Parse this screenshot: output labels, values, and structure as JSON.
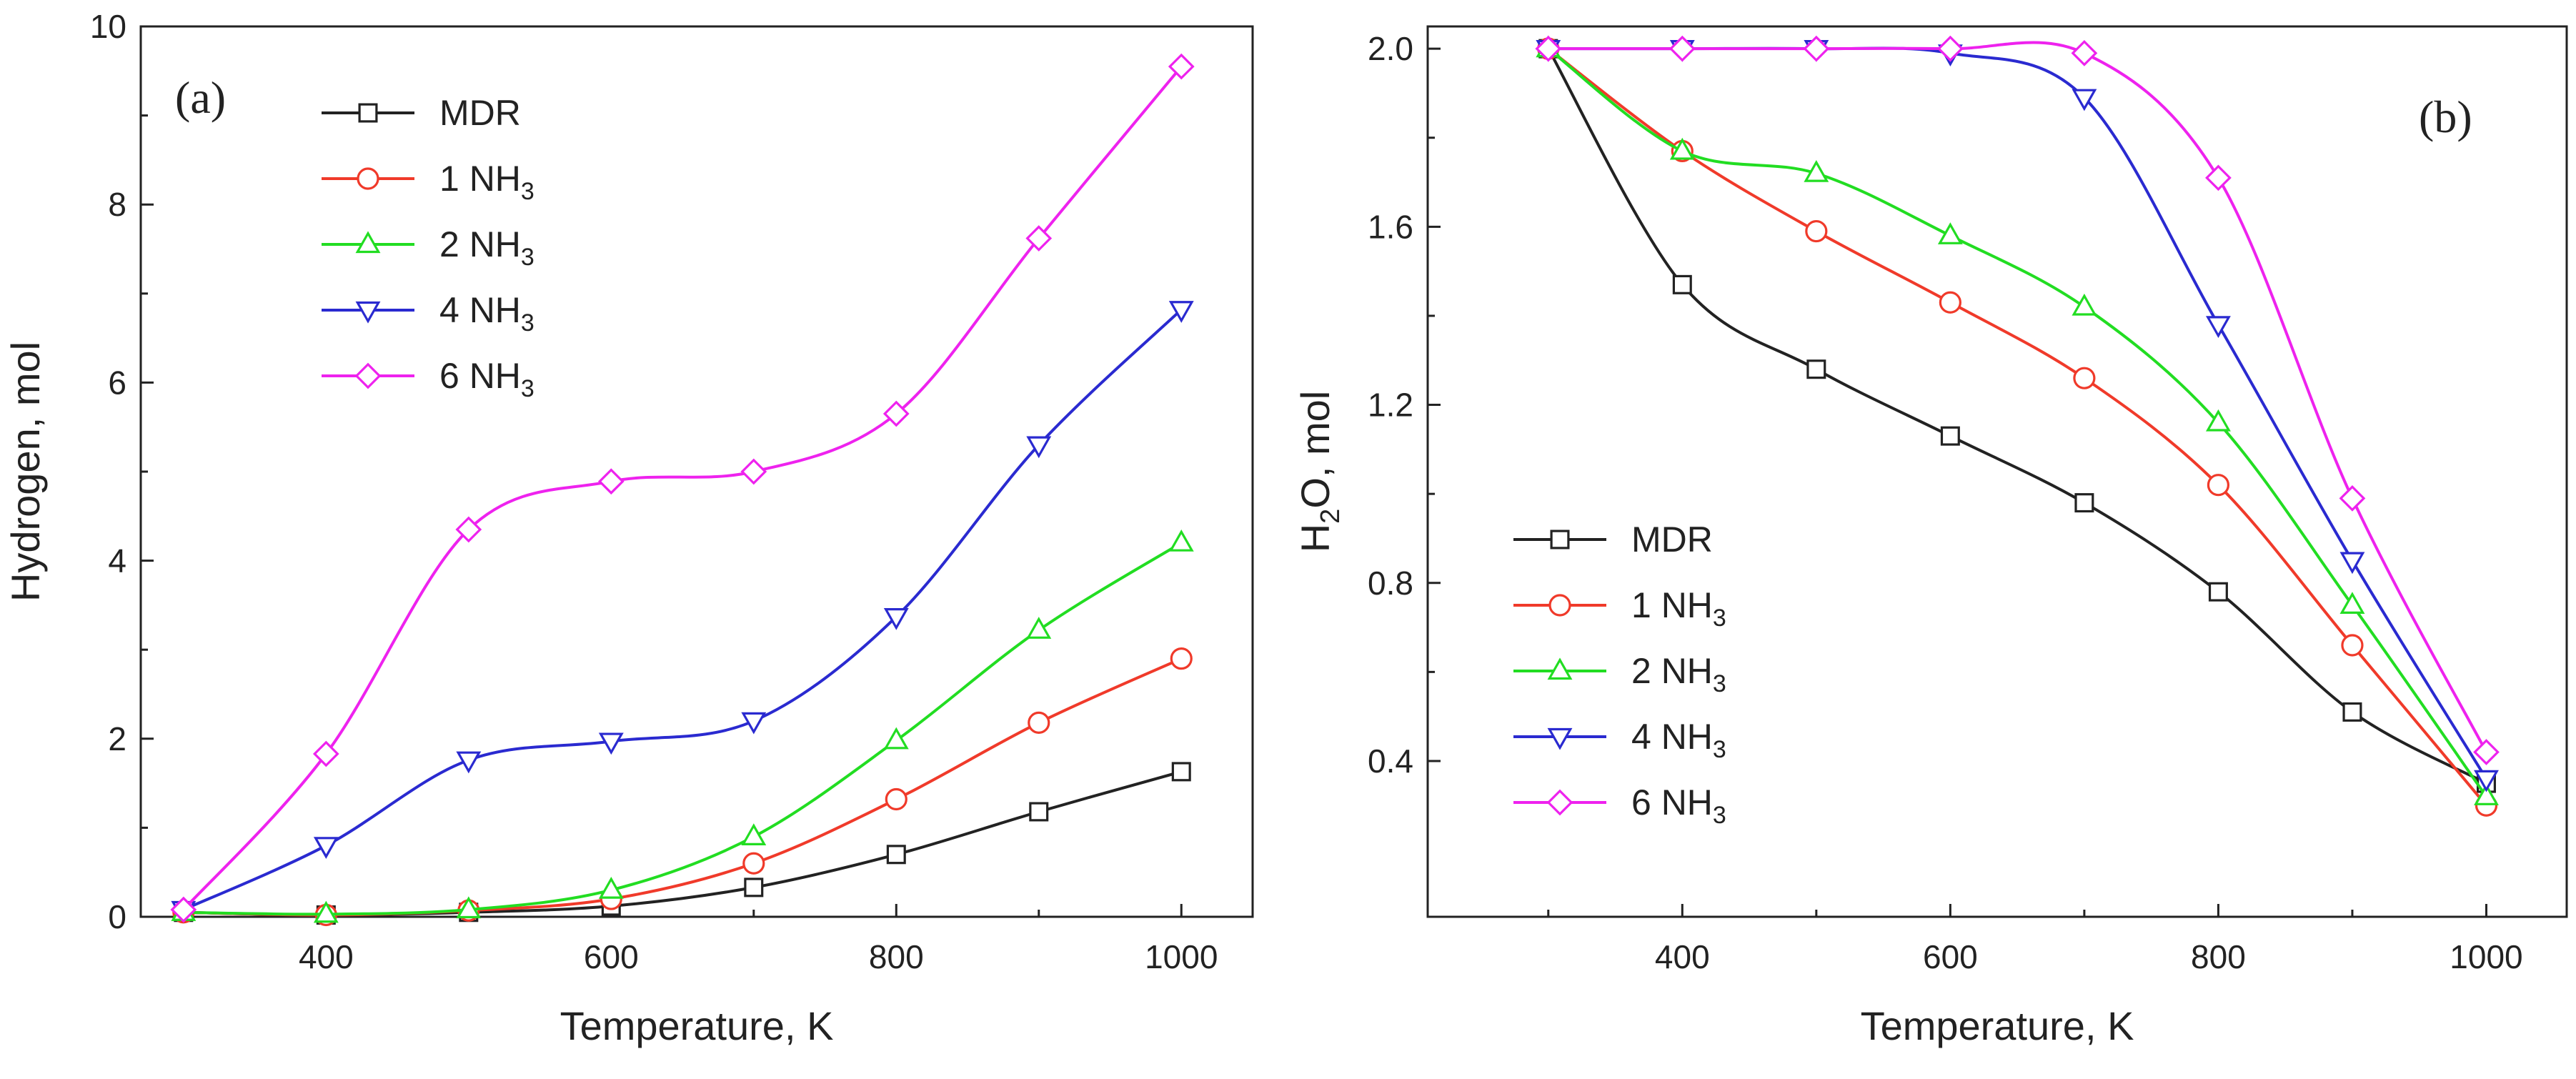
{
  "chart_data": [
    {
      "type": "line",
      "panel_label": "(a)",
      "title": "",
      "xlabel": "Temperature, K",
      "ylabel": "Hydrogen, mol",
      "xlim": [
        270,
        1050
      ],
      "ylim": [
        0,
        10
      ],
      "x_ticks": [
        "400",
        "600",
        "800",
        "1000"
      ],
      "y_ticks": [
        "0",
        "2",
        "4",
        "6",
        "8",
        "10"
      ],
      "legend_position": "top-left",
      "x": [
        300,
        400,
        500,
        600,
        700,
        800,
        900,
        1000
      ],
      "series": [
        {
          "name": "MDR",
          "base": "MDR",
          "sub": "",
          "color": "#222222",
          "marker": "square",
          "values": [
            0.05,
            0.02,
            0.05,
            0.12,
            0.33,
            0.7,
            1.18,
            1.63
          ]
        },
        {
          "name": "1 NH3",
          "base": "1 NH",
          "sub": "3",
          "color": "#f03a2a",
          "marker": "circle",
          "values": [
            0.05,
            0.02,
            0.07,
            0.2,
            0.6,
            1.32,
            2.18,
            2.9
          ]
        },
        {
          "name": "2 NH3",
          "base": "2 NH",
          "sub": "3",
          "color": "#22dd22",
          "marker": "triangle-up",
          "values": [
            0.05,
            0.03,
            0.08,
            0.3,
            0.9,
            1.98,
            3.22,
            4.2
          ]
        },
        {
          "name": "4 NH3",
          "base": "4 NH",
          "sub": "3",
          "color": "#2a2ad0",
          "marker": "triangle-down",
          "values": [
            0.08,
            0.8,
            1.76,
            1.97,
            2.2,
            3.37,
            5.3,
            6.82
          ]
        },
        {
          "name": "6 NH3",
          "base": "6 NH",
          "sub": "3",
          "color": "#ee22ee",
          "marker": "diamond",
          "values": [
            0.08,
            1.83,
            4.35,
            4.89,
            5.0,
            5.65,
            7.62,
            9.55
          ]
        }
      ]
    },
    {
      "type": "line",
      "panel_label": "(b)",
      "title": "",
      "xlabel": "Temperature, K",
      "ylabel": "H2O, mol",
      "ylabel_parts": [
        "H",
        "2",
        "O, mol"
      ],
      "xlim": [
        210,
        1060
      ],
      "ylim": [
        0.05,
        2.05
      ],
      "x_ticks": [
        "400",
        "600",
        "800",
        "1000"
      ],
      "y_ticks": [
        "0.4",
        "0.8",
        "1.2",
        "1.6",
        "2.0"
      ],
      "legend_position": "bottom-left",
      "x": [
        300,
        400,
        500,
        600,
        700,
        800,
        900,
        1000
      ],
      "series": [
        {
          "name": "MDR",
          "base": "MDR",
          "sub": "",
          "color": "#222222",
          "marker": "square",
          "values": [
            2.0,
            1.47,
            1.28,
            1.13,
            0.98,
            0.78,
            0.51,
            0.35
          ]
        },
        {
          "name": "1 NH3",
          "base": "1 NH",
          "sub": "3",
          "color": "#f03a2a",
          "marker": "circle",
          "values": [
            2.0,
            1.77,
            1.59,
            1.43,
            1.26,
            1.02,
            0.66,
            0.3
          ]
        },
        {
          "name": "2 NH3",
          "base": "2 NH",
          "sub": "3",
          "color": "#22dd22",
          "marker": "triangle-up",
          "values": [
            2.0,
            1.77,
            1.72,
            1.58,
            1.42,
            1.16,
            0.75,
            0.32
          ]
        },
        {
          "name": "4 NH3",
          "base": "4 NH",
          "sub": "3",
          "color": "#2a2ad0",
          "marker": "triangle-down",
          "values": [
            2.0,
            2.0,
            2.0,
            1.99,
            1.89,
            1.38,
            0.85,
            0.36
          ]
        },
        {
          "name": "6 NH3",
          "base": "6 NH",
          "sub": "3",
          "color": "#ee22ee",
          "marker": "diamond",
          "values": [
            2.0,
            2.0,
            2.0,
            2.0,
            1.99,
            1.71,
            0.99,
            0.42
          ]
        }
      ]
    }
  ]
}
